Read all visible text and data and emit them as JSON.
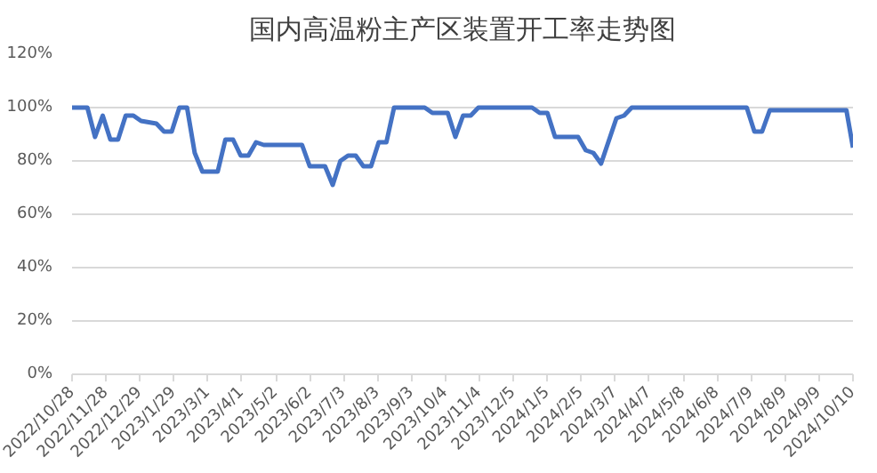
{
  "chart_data": {
    "type": "line",
    "title": "国内高温粉主产区装置开工率走势图",
    "x": [
      "2022-10-28",
      "2022-11-11",
      "2022-11-18",
      "2022-11-25",
      "2022-12-02",
      "2022-12-09",
      "2022-12-16",
      "2022-12-23",
      "2022-12-30",
      "2023-01-13",
      "2023-01-20",
      "2023-01-27",
      "2023-02-03",
      "2023-02-10",
      "2023-02-17",
      "2023-02-24",
      "2023-03-10",
      "2023-03-17",
      "2023-03-24",
      "2023-03-31",
      "2023-04-07",
      "2023-04-14",
      "2023-04-21",
      "2023-05-26",
      "2023-06-02",
      "2023-06-16",
      "2023-06-23",
      "2023-06-30",
      "2023-07-07",
      "2023-07-14",
      "2023-07-21",
      "2023-07-28",
      "2023-08-04",
      "2023-08-11",
      "2023-08-18",
      "2023-09-15",
      "2023-09-22",
      "2023-10-06",
      "2023-10-13",
      "2023-10-20",
      "2023-10-27",
      "2023-11-03",
      "2023-12-22",
      "2023-12-29",
      "2024-01-05",
      "2024-01-12",
      "2024-02-02",
      "2024-02-09",
      "2024-02-16",
      "2024-02-23",
      "2024-03-08",
      "2024-03-15",
      "2024-03-22",
      "2024-07-05",
      "2024-07-12",
      "2024-07-19",
      "2024-07-26",
      "2024-10-04",
      "2024-10-10"
    ],
    "series": [
      {
        "color": "#4472c4",
        "values": [
          100,
          100,
          89,
          97,
          88,
          88,
          97,
          97,
          95,
          94,
          91,
          91,
          100,
          100,
          83,
          76,
          76,
          88,
          88,
          82,
          82,
          87,
          86,
          86,
          78,
          78,
          71,
          80,
          82,
          82,
          78,
          78,
          87,
          87,
          100,
          100,
          98,
          98,
          89,
          97,
          97,
          100,
          100,
          98,
          98,
          89,
          89,
          84,
          83,
          79,
          96,
          97,
          100,
          100,
          91,
          91,
          99,
          99,
          85
        ]
      }
    ],
    "xlim": [
      "2022-10-28",
      "2024-10-10"
    ],
    "xticks": [
      {
        "value": "2022-10-28",
        "label": "2022/10/28"
      },
      {
        "value": "2022-11-28",
        "label": "2022/11/28"
      },
      {
        "value": "2022-12-29",
        "label": "2022/12/29"
      },
      {
        "value": "2023-01-29",
        "label": "2023/1/29"
      },
      {
        "value": "2023-03-01",
        "label": "2023/3/1"
      },
      {
        "value": "2023-04-01",
        "label": "2023/4/1"
      },
      {
        "value": "2023-05-02",
        "label": "2023/5/2"
      },
      {
        "value": "2023-06-02",
        "label": "2023/6/2"
      },
      {
        "value": "2023-07-03",
        "label": "2023/7/3"
      },
      {
        "value": "2023-08-03",
        "label": "2023/8/3"
      },
      {
        "value": "2023-09-03",
        "label": "2023/9/3"
      },
      {
        "value": "2023-10-04",
        "label": "2023/10/4"
      },
      {
        "value": "2023-11-04",
        "label": "2023/11/4"
      },
      {
        "value": "2023-12-05",
        "label": "2023/12/5"
      },
      {
        "value": "2024-01-05",
        "label": "2024/1/5"
      },
      {
        "value": "2024-02-05",
        "label": "2024/2/5"
      },
      {
        "value": "2024-03-07",
        "label": "2024/3/7"
      },
      {
        "value": "2024-04-07",
        "label": "2024/4/7"
      },
      {
        "value": "2024-05-08",
        "label": "2024/5/8"
      },
      {
        "value": "2024-06-08",
        "label": "2024/6/8"
      },
      {
        "value": "2024-07-09",
        "label": "2024/7/9"
      },
      {
        "value": "2024-08-09",
        "label": "2024/8/9"
      },
      {
        "value": "2024-09-09",
        "label": "2024/9/9"
      },
      {
        "value": "2024-10-10",
        "label": "2024/10/10"
      }
    ],
    "ylim": [
      0,
      120
    ],
    "yticks": [
      {
        "value": 0,
        "label": "0%"
      },
      {
        "value": 20,
        "label": "20%"
      },
      {
        "value": 40,
        "label": "40%"
      },
      {
        "value": 60,
        "label": "60%"
      },
      {
        "value": 80,
        "label": "80%"
      },
      {
        "value": 100,
        "label": "100%"
      },
      {
        "value": 120,
        "label": "120%"
      }
    ],
    "grid": "y",
    "line_style": "solid"
  }
}
